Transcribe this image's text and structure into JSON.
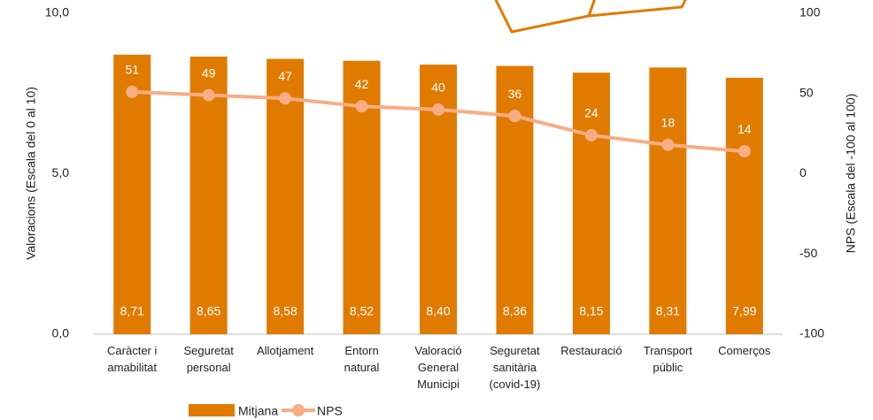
{
  "chart_data": {
    "type": "bar_line",
    "categories": [
      "Caràcter i\namabilitat",
      "Seguretat\npersonal",
      "Allotjament",
      "Entorn\nnatural",
      "Valoració\nGeneral\nMunicipi",
      "Seguretat\nsanitària\n(covid-19)",
      "Restauració",
      "Transport\npúblic",
      "Comerços"
    ],
    "series": [
      {
        "name": "Mitjana",
        "color": "#e07b00",
        "type": "bar",
        "values": [
          8.71,
          8.65,
          8.58,
          8.52,
          8.4,
          8.36,
          8.15,
          8.31,
          7.99
        ],
        "value_labels": [
          "8,71",
          "8,65",
          "8,58",
          "8,52",
          "8,40",
          "8,36",
          "8,15",
          "8,31",
          "7,99"
        ]
      },
      {
        "name": "NPS",
        "color": "#f8ad85",
        "type": "line",
        "axis": "y2",
        "values": [
          51,
          49,
          47,
          42,
          40,
          36,
          24,
          18,
          14
        ]
      }
    ],
    "ylabel": "Valoracions (Escala  del 0 al 10)",
    "y2label": "NPS (Escala  del -100 al 100)",
    "ylim": [
      0,
      10
    ],
    "yticks": [
      {
        "value": 0,
        "label": "0,0"
      },
      {
        "value": 5,
        "label": "5,0"
      },
      {
        "value": 10,
        "label": "10,0"
      }
    ],
    "y2lim": [
      -100,
      100
    ],
    "y2ticks": [
      -100,
      -50,
      0,
      50,
      100
    ],
    "legend": "bottom"
  }
}
